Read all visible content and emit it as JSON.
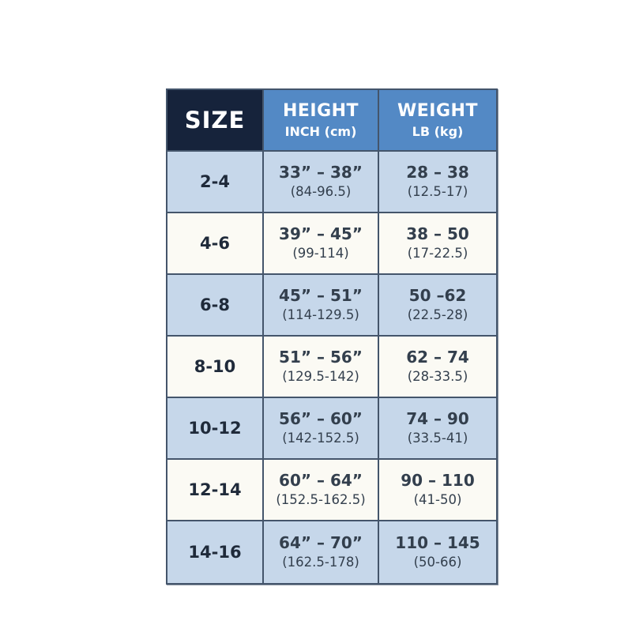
{
  "chart_data": {
    "type": "table",
    "columns": [
      {
        "label": "SIZE",
        "sublabel": ""
      },
      {
        "label": "HEIGHT",
        "sublabel": "INCH (cm)"
      },
      {
        "label": "WEIGHT",
        "sublabel": "LB (kg)"
      }
    ],
    "rows": [
      {
        "size": "2-4",
        "height_in": "33” – 38”",
        "height_cm": "(84-96.5)",
        "weight_lb": "28 – 38",
        "weight_kg": "(12.5-17)"
      },
      {
        "size": "4-6",
        "height_in": "39” – 45”",
        "height_cm": "(99-114)",
        "weight_lb": "38 – 50",
        "weight_kg": "(17-22.5)"
      },
      {
        "size": "6-8",
        "height_in": "45” – 51”",
        "height_cm": "(114-129.5)",
        "weight_lb": "50 –62",
        "weight_kg": "(22.5-28)"
      },
      {
        "size": "8-10",
        "height_in": "51” – 56”",
        "height_cm": "(129.5-142)",
        "weight_lb": "62 – 74",
        "weight_kg": "(28-33.5)"
      },
      {
        "size": "10-12",
        "height_in": "56” – 60”",
        "height_cm": "(142-152.5)",
        "weight_lb": "74 – 90",
        "weight_kg": "(33.5-41)"
      },
      {
        "size": "12-14",
        "height_in": "60” – 64”",
        "height_cm": "(152.5-162.5)",
        "weight_lb": "90 – 110",
        "weight_kg": "(41-50)"
      },
      {
        "size": "14-16",
        "height_in": "64” – 70”",
        "height_cm": "(162.5-178)",
        "weight_lb": "110 – 145",
        "weight_kg": "(50-66)"
      }
    ]
  },
  "colors": {
    "header_dark_navy": "#16233b",
    "header_blue": "#5389c5",
    "row_light_blue": "#c6d7ea",
    "row_off_white": "#fbfaf4",
    "grid_border": "#44556b",
    "header_text": "#ffffff",
    "body_text": "#333f4d"
  }
}
